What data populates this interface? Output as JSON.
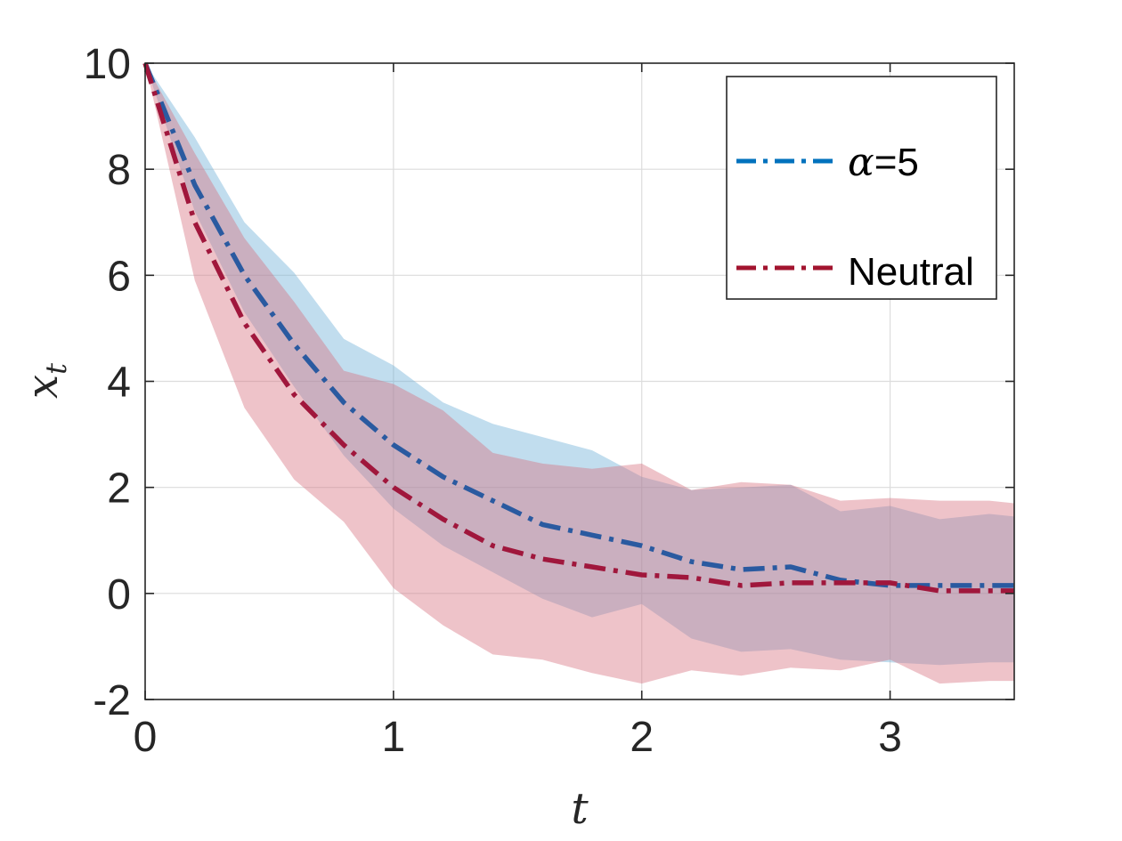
{
  "chart_data": {
    "type": "line",
    "title": "",
    "xlabel": "t",
    "ylabel_main": "x",
    "ylabel_sub": "t",
    "xlim": [
      0,
      3.5
    ],
    "ylim": [
      -2,
      10
    ],
    "xticks": [
      0,
      1,
      2,
      3
    ],
    "yticks": [
      -2,
      0,
      2,
      4,
      6,
      8,
      10
    ],
    "x_tick_labels": [
      "0",
      "1",
      "2",
      "3"
    ],
    "y_tick_labels": [
      "-2",
      "0",
      "2",
      "4",
      "6",
      "8",
      "10"
    ],
    "grid": true,
    "legend_position": "top-right",
    "x": [
      0,
      0.2,
      0.4,
      0.6,
      0.8,
      1.0,
      1.2,
      1.4,
      1.6,
      1.8,
      2.0,
      2.2,
      2.4,
      2.6,
      2.8,
      3.0,
      3.2,
      3.4,
      3.5
    ],
    "series": [
      {
        "name": "alpha=5",
        "legend_symbol": "α",
        "legend_suffix": "=5",
        "line_color": "#2a5aa0",
        "legend_color": "#0072bd",
        "band_color": "#6baed6",
        "values": [
          10,
          7.7,
          6.0,
          4.7,
          3.6,
          2.8,
          2.2,
          1.75,
          1.3,
          1.1,
          0.9,
          0.6,
          0.45,
          0.5,
          0.25,
          0.15,
          0.15,
          0.15,
          0.15
        ],
        "lower": [
          10,
          7.2,
          5.3,
          3.9,
          2.6,
          1.6,
          0.9,
          0.4,
          -0.1,
          -0.45,
          -0.2,
          -0.85,
          -1.1,
          -1.05,
          -1.25,
          -1.3,
          -1.35,
          -1.3,
          -1.3
        ],
        "upper": [
          10,
          8.6,
          7.0,
          6.05,
          4.8,
          4.3,
          3.6,
          3.2,
          2.95,
          2.7,
          2.2,
          1.95,
          2.0,
          2.05,
          1.55,
          1.65,
          1.4,
          1.5,
          1.45
        ]
      },
      {
        "name": "Neutral",
        "line_color": "#a0173c",
        "legend_color": "#a2142f",
        "band_color": "#d6707f",
        "values": [
          10,
          7.0,
          5.1,
          3.75,
          2.8,
          2.0,
          1.4,
          0.9,
          0.65,
          0.5,
          0.35,
          0.3,
          0.15,
          0.2,
          0.2,
          0.2,
          0.05,
          0.05,
          0.05
        ],
        "lower": [
          10,
          5.9,
          3.5,
          2.15,
          1.35,
          0.1,
          -0.6,
          -1.15,
          -1.25,
          -1.5,
          -1.7,
          -1.45,
          -1.55,
          -1.4,
          -1.45,
          -1.25,
          -1.7,
          -1.65,
          -1.65
        ],
        "upper": [
          10,
          8.3,
          6.7,
          5.5,
          4.2,
          3.95,
          3.45,
          2.65,
          2.45,
          2.35,
          2.45,
          1.95,
          2.1,
          2.05,
          1.75,
          1.8,
          1.75,
          1.75,
          1.7
        ]
      }
    ]
  }
}
